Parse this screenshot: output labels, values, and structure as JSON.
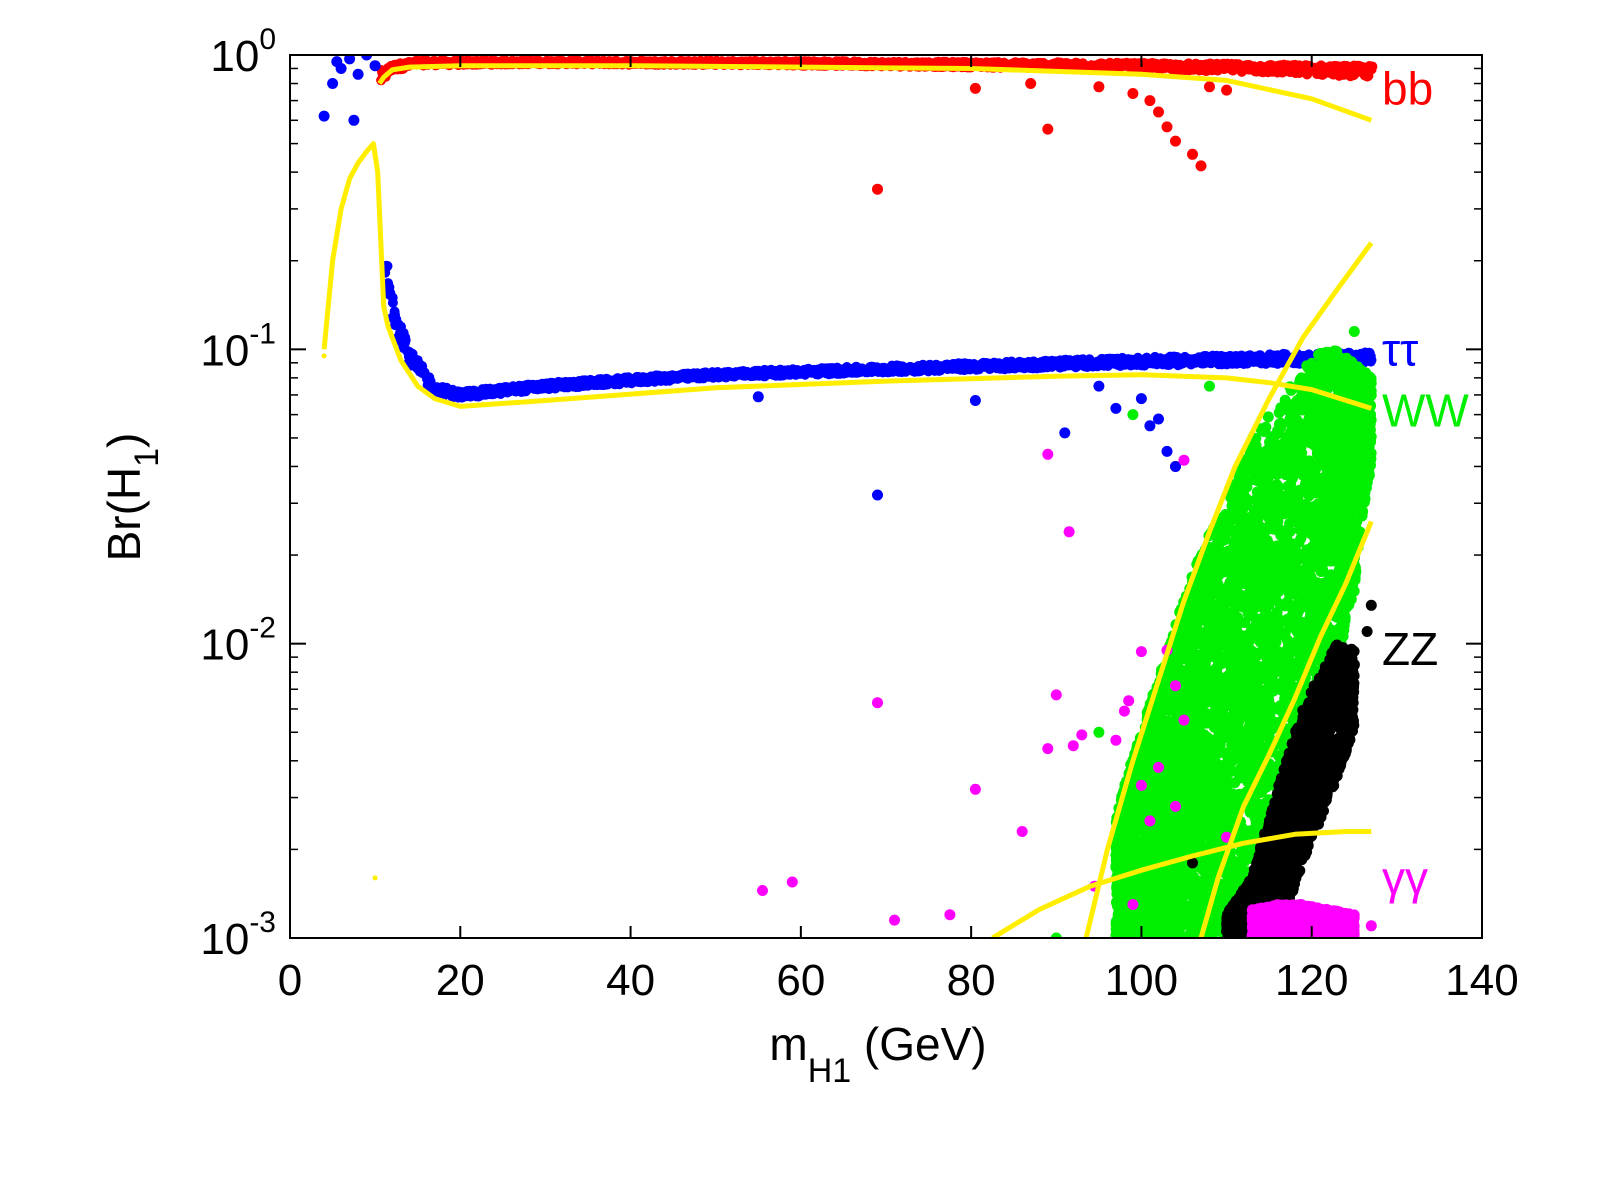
{
  "chart_data": {
    "type": "scatter",
    "title": "",
    "xlabel": {
      "main": "m",
      "sub": "H1",
      "rest": " (GeV)"
    },
    "ylabel": {
      "main": "Br(H",
      "sub": "1",
      "rest": ")"
    },
    "xlim": [
      0,
      140
    ],
    "ylim": [
      0.001,
      1
    ],
    "yscale": "log",
    "grid": false,
    "x_ticks": [
      {
        "value": 0,
        "label": "0"
      },
      {
        "value": 20,
        "label": "20"
      },
      {
        "value": 40,
        "label": "40"
      },
      {
        "value": 60,
        "label": "60"
      },
      {
        "value": 80,
        "label": "80"
      },
      {
        "value": 100,
        "label": "100"
      },
      {
        "value": 120,
        "label": "120"
      },
      {
        "value": 140,
        "label": "140"
      }
    ],
    "y_ticks": [
      {
        "value": 1,
        "base": "10",
        "exp": "0"
      },
      {
        "value": 0.1,
        "base": "10",
        "exp": "-1"
      },
      {
        "value": 0.01,
        "base": "10",
        "exp": "-2"
      },
      {
        "value": 0.001,
        "base": "10",
        "exp": "-3"
      }
    ],
    "series_labels": [
      {
        "text": "bb",
        "color": "#ff0000",
        "y": 0.77
      },
      {
        "text": "ττ",
        "color": "#0000ff",
        "y": 0.1
      },
      {
        "text": "WW",
        "color": "#00ee00",
        "y": 0.062
      },
      {
        "text": "ZZ",
        "color": "#000000",
        "y": 0.0096
      },
      {
        "text": "γγ",
        "color": "#ff00ff",
        "y": 0.0016
      }
    ],
    "series": [
      {
        "color": "#ff0000",
        "role": "scatter-band",
        "band": [
          [
            10.5,
            0.78,
            0.88
          ],
          [
            12,
            0.88,
            0.93
          ],
          [
            15,
            0.92,
            0.96
          ],
          [
            30,
            0.93,
            0.96
          ],
          [
            60,
            0.92,
            0.955
          ],
          [
            90,
            0.9,
            0.945
          ],
          [
            110,
            0.88,
            0.935
          ],
          [
            127,
            0.84,
            0.92
          ]
        ],
        "outliers": [
          [
            69,
            0.35
          ],
          [
            80.5,
            0.77
          ],
          [
            87,
            0.8
          ],
          [
            89,
            0.56
          ],
          [
            95,
            0.78
          ],
          [
            99,
            0.74
          ],
          [
            101,
            0.7
          ],
          [
            102,
            0.64
          ],
          [
            103,
            0.57
          ],
          [
            104,
            0.51
          ],
          [
            106,
            0.46
          ],
          [
            107,
            0.42
          ],
          [
            108,
            0.78
          ],
          [
            110,
            0.76
          ],
          [
            104,
            0.04
          ]
        ]
      },
      {
        "color": "#0000ff",
        "role": "scatter-band",
        "band": [
          [
            11,
            0.16,
            0.23
          ],
          [
            12,
            0.125,
            0.16
          ],
          [
            14,
            0.088,
            0.1
          ],
          [
            17,
            0.07,
            0.076
          ],
          [
            20,
            0.068,
            0.072
          ],
          [
            30,
            0.073,
            0.077
          ],
          [
            50,
            0.08,
            0.084
          ],
          [
            80,
            0.085,
            0.09
          ],
          [
            100,
            0.088,
            0.094
          ],
          [
            127,
            0.09,
            0.098
          ]
        ],
        "outliers": [
          [
            4,
            0.62
          ],
          [
            5,
            0.8
          ],
          [
            6,
            0.9
          ],
          [
            7,
            0.97
          ],
          [
            8,
            0.86
          ],
          [
            9,
            1.0
          ],
          [
            10,
            0.92
          ],
          [
            5.5,
            0.95
          ],
          [
            7.5,
            0.6
          ],
          [
            69,
            0.032
          ],
          [
            55,
            0.069
          ],
          [
            80.5,
            0.067
          ],
          [
            91,
            0.052
          ],
          [
            95,
            0.075
          ],
          [
            97,
            0.063
          ],
          [
            100,
            0.068
          ],
          [
            101,
            0.055
          ],
          [
            102,
            0.058
          ],
          [
            103,
            0.045
          ],
          [
            104,
            0.04
          ]
        ]
      },
      {
        "color": "#00ee00",
        "role": "scatter-cloud",
        "cloud": [
          [
            97,
            0.001,
            0.0025
          ],
          [
            100,
            0.001,
            0.005
          ],
          [
            103,
            0.001,
            0.009
          ],
          [
            106,
            0.001,
            0.017
          ],
          [
            110,
            0.001,
            0.03
          ],
          [
            113,
            0.0012,
            0.05
          ],
          [
            116,
            0.0015,
            0.065
          ],
          [
            119,
            0.0025,
            0.085
          ],
          [
            121,
            0.004,
            0.1
          ],
          [
            123,
            0.008,
            0.1
          ],
          [
            125,
            0.015,
            0.09
          ],
          [
            127,
            0.04,
            0.08
          ]
        ],
        "points": [
          [
            90,
            0.001
          ],
          [
            99,
            0.06
          ],
          [
            108,
            0.075
          ],
          [
            95,
            0.005
          ],
          [
            125,
            0.115
          ]
        ]
      },
      {
        "color": "#000000",
        "role": "scatter-cloud",
        "cloud": [
          [
            110,
            0.001,
            0.0012
          ],
          [
            113,
            0.001,
            0.0016
          ],
          [
            115,
            0.001,
            0.0025
          ],
          [
            117,
            0.0012,
            0.004
          ],
          [
            119,
            0.0018,
            0.006
          ],
          [
            121,
            0.0025,
            0.008
          ],
          [
            123,
            0.0035,
            0.01
          ],
          [
            125,
            0.005,
            0.0095
          ]
        ],
        "points": [
          [
            127,
            0.0135
          ],
          [
            126.5,
            0.011
          ],
          [
            125,
            0.0085
          ],
          [
            112,
            0.0012
          ],
          [
            106,
            0.0018
          ]
        ]
      },
      {
        "color": "#ff00ff",
        "role": "scatter-cloud",
        "cloud": [
          [
            113,
            0.001,
            0.00125
          ],
          [
            116,
            0.001,
            0.0013
          ],
          [
            119,
            0.001,
            0.0013
          ],
          [
            122,
            0.001,
            0.00125
          ],
          [
            125,
            0.001,
            0.0012
          ]
        ],
        "points": [
          [
            55.5,
            0.00145
          ],
          [
            59,
            0.00155
          ],
          [
            69,
            0.0063
          ],
          [
            71,
            0.00115
          ],
          [
            77.5,
            0.0012
          ],
          [
            80.5,
            0.0032
          ],
          [
            86,
            0.0023
          ],
          [
            89,
            0.0044
          ],
          [
            90,
            0.0067
          ],
          [
            91.5,
            0.024
          ],
          [
            89,
            0.044
          ],
          [
            92,
            0.0045
          ],
          [
            93,
            0.0049
          ],
          [
            94.5,
            0.0015
          ],
          [
            97,
            0.0047
          ],
          [
            99,
            0.0013
          ],
          [
            100,
            0.0033
          ],
          [
            101,
            0.0025
          ],
          [
            102,
            0.0038
          ],
          [
            104,
            0.0028
          ],
          [
            105,
            0.0055
          ],
          [
            103,
            0.0095
          ],
          [
            104,
            0.0072
          ],
          [
            98,
            0.0059
          ],
          [
            110,
            0.0022
          ],
          [
            127,
            0.0011
          ],
          [
            105,
            0.042
          ],
          [
            100,
            0.0094
          ],
          [
            98.5,
            0.0064
          ]
        ]
      }
    ],
    "yellow_curves": [
      [
        [
          10.5,
          0.8
        ],
        [
          11,
          0.84
        ],
        [
          12,
          0.89
        ],
        [
          14,
          0.91
        ],
        [
          20,
          0.92
        ],
        [
          40,
          0.92
        ],
        [
          60,
          0.91
        ],
        [
          80,
          0.9
        ],
        [
          100,
          0.86
        ],
        [
          110,
          0.82
        ],
        [
          120,
          0.71
        ],
        [
          127,
          0.6
        ]
      ],
      [
        [
          4,
          0.1
        ],
        [
          5,
          0.2
        ],
        [
          6,
          0.3
        ],
        [
          7,
          0.38
        ],
        [
          8,
          0.43
        ],
        [
          9,
          0.47
        ],
        [
          9.8,
          0.5
        ],
        [
          10.3,
          0.4
        ],
        [
          11,
          0.14
        ],
        [
          11.5,
          0.12
        ],
        [
          13,
          0.092
        ],
        [
          15,
          0.075
        ],
        [
          17,
          0.068
        ],
        [
          20,
          0.064
        ],
        [
          30,
          0.067
        ],
        [
          50,
          0.074
        ],
        [
          70,
          0.078
        ],
        [
          90,
          0.081
        ],
        [
          100,
          0.082
        ],
        [
          110,
          0.08
        ],
        [
          115,
          0.077
        ],
        [
          120,
          0.073
        ],
        [
          127,
          0.063
        ]
      ],
      [
        [
          93.5,
          0.001
        ],
        [
          96,
          0.002
        ],
        [
          99,
          0.004
        ],
        [
          102,
          0.0075
        ],
        [
          105,
          0.014
        ],
        [
          108,
          0.024
        ],
        [
          111,
          0.04
        ],
        [
          115,
          0.068
        ],
        [
          119,
          0.11
        ],
        [
          123,
          0.16
        ],
        [
          127,
          0.23
        ]
      ],
      [
        [
          107,
          0.001
        ],
        [
          109,
          0.0016
        ],
        [
          112,
          0.0028
        ],
        [
          115,
          0.0042
        ],
        [
          118,
          0.0065
        ],
        [
          121,
          0.0105
        ],
        [
          124,
          0.016
        ],
        [
          127,
          0.026
        ]
      ],
      [
        [
          82.5,
          0.001
        ],
        [
          88,
          0.00125
        ],
        [
          94,
          0.0015
        ],
        [
          100,
          0.0017
        ],
        [
          106,
          0.0019
        ],
        [
          112,
          0.0021
        ],
        [
          118,
          0.00225
        ],
        [
          124,
          0.0023
        ],
        [
          127,
          0.0023
        ]
      ]
    ],
    "yellow_dots": [
      [
        4,
        0.095
      ],
      [
        10,
        0.0016
      ]
    ]
  }
}
